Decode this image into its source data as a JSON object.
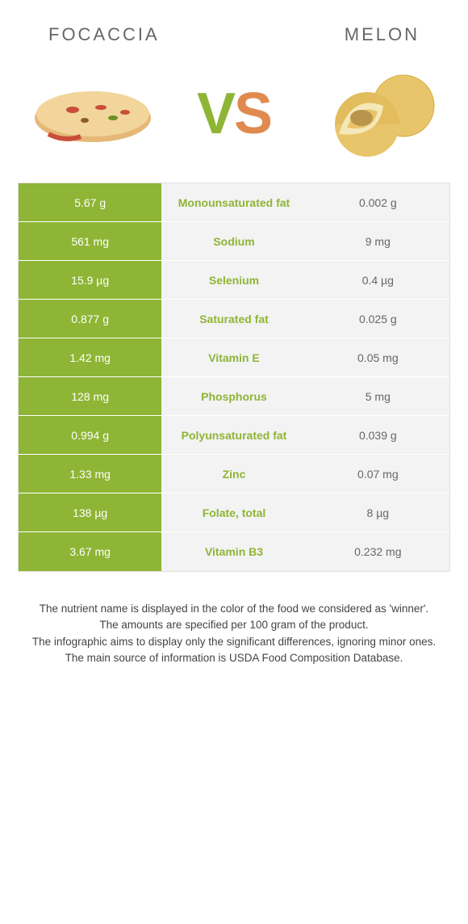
{
  "header": {
    "left_title": "Focaccia",
    "right_title": "Melon"
  },
  "vs": {
    "v": "V",
    "s": "S"
  },
  "colors": {
    "left": "#8eb535",
    "right": "#e08a4f",
    "neutral": "#f3f3f3"
  },
  "rows": [
    {
      "left": "5.67 g",
      "label": "Monounsaturated fat",
      "right": "0.002 g",
      "winner": "left"
    },
    {
      "left": "561 mg",
      "label": "Sodium",
      "right": "9 mg",
      "winner": "left"
    },
    {
      "left": "15.9 µg",
      "label": "Selenium",
      "right": "0.4 µg",
      "winner": "left"
    },
    {
      "left": "0.877 g",
      "label": "Saturated fat",
      "right": "0.025 g",
      "winner": "left"
    },
    {
      "left": "1.42 mg",
      "label": "Vitamin E",
      "right": "0.05 mg",
      "winner": "left"
    },
    {
      "left": "128 mg",
      "label": "Phosphorus",
      "right": "5 mg",
      "winner": "left"
    },
    {
      "left": "0.994 g",
      "label": "Polyunsaturated fat",
      "right": "0.039 g",
      "winner": "left"
    },
    {
      "left": "1.33 mg",
      "label": "Zinc",
      "right": "0.07 mg",
      "winner": "left"
    },
    {
      "left": "138 µg",
      "label": "Folate, total",
      "right": "8 µg",
      "winner": "left"
    },
    {
      "left": "3.67 mg",
      "label": "Vitamin B3",
      "right": "0.232 mg",
      "winner": "left"
    }
  ],
  "footer": {
    "line1": "The nutrient name is displayed in the color of the food we considered as 'winner'.",
    "line2": "The amounts are specified per 100 gram of the product.",
    "line3": "The infographic aims to display only the significant differences, ignoring minor ones.",
    "line4": "The main source of information is USDA Food Composition Database."
  }
}
